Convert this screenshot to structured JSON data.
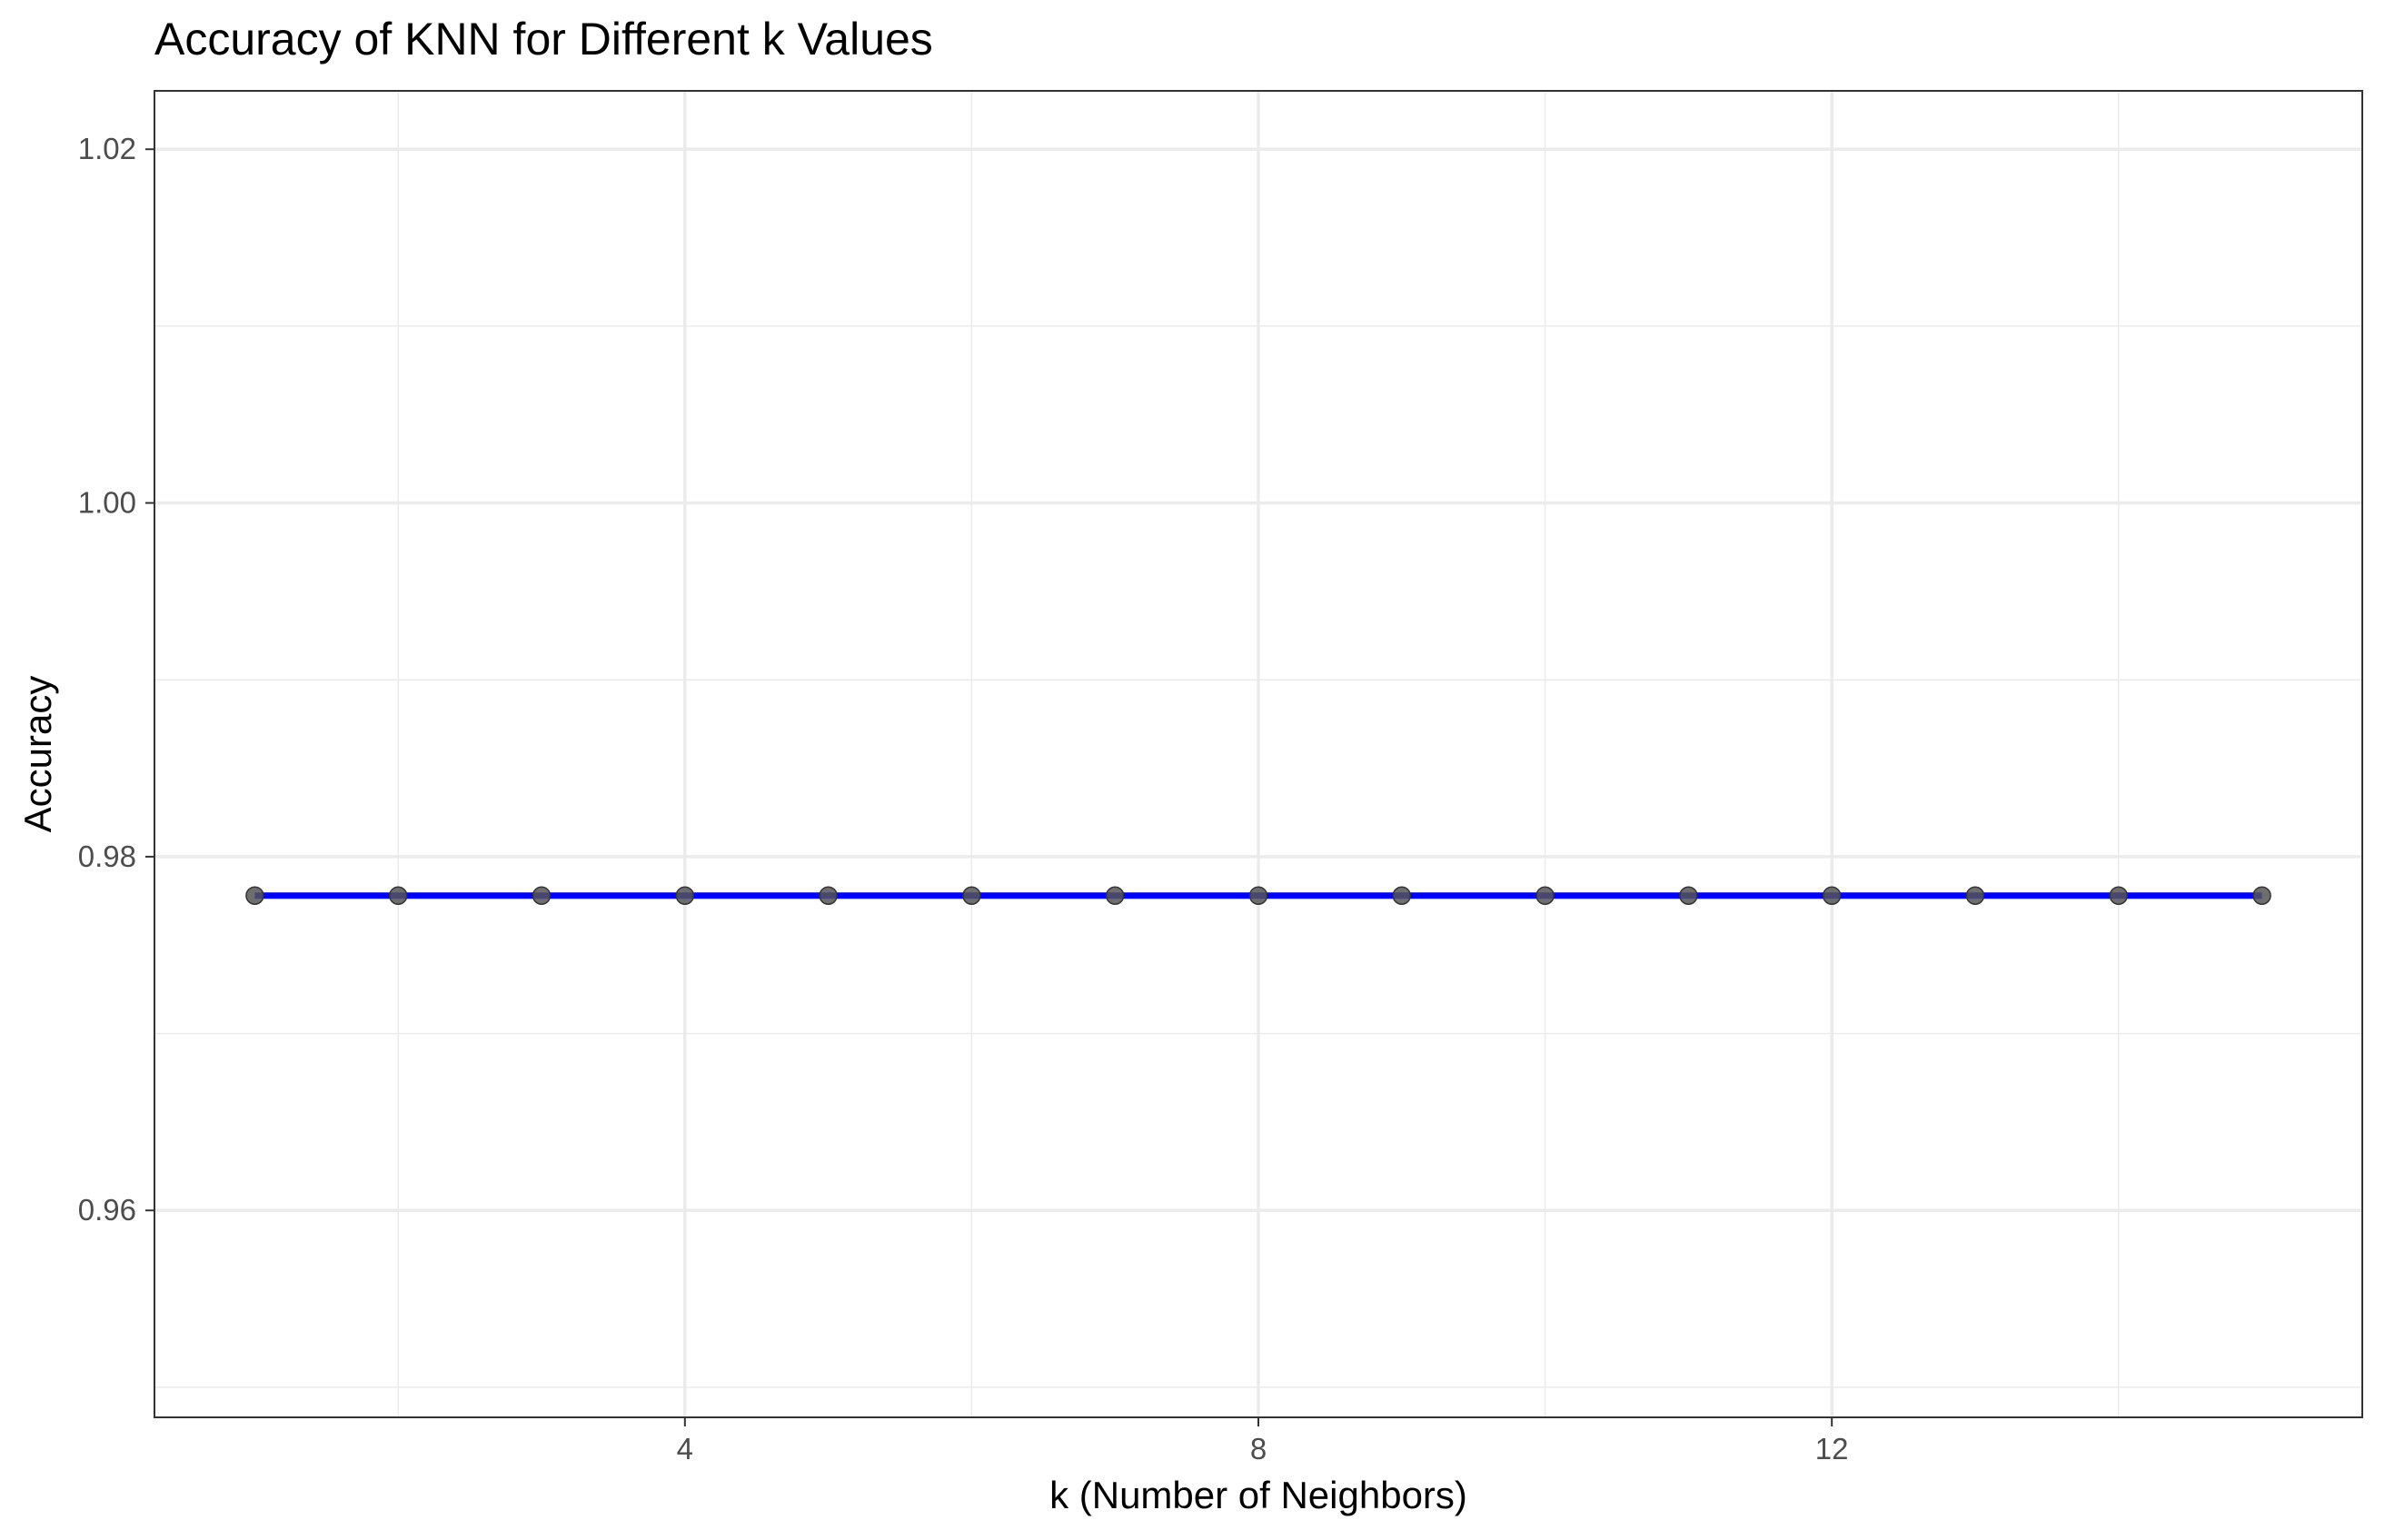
{
  "chart_data": {
    "type": "line",
    "title": "Accuracy of KNN for Different k Values",
    "xlabel": "k (Number of Neighbors)",
    "ylabel": "Accuracy",
    "xlim": [
      0.3,
      15.7
    ],
    "ylim": [
      0.9483,
      1.0233
    ],
    "x_ticks": [
      4,
      8,
      12
    ],
    "x_tick_labels": [
      "4",
      "8",
      "12"
    ],
    "x_minor_ticks": [
      2,
      6,
      10,
      14
    ],
    "y_ticks": [
      0.96,
      0.98,
      1.0,
      1.02
    ],
    "y_tick_labels": [
      "0.96",
      "0.98",
      "1.00",
      "1.02"
    ],
    "y_minor_ticks": [
      0.95,
      0.97,
      0.99,
      1.01
    ],
    "grid": true,
    "series": [
      {
        "name": "Accuracy",
        "line_color": "#0000ff",
        "point_color": "#555555",
        "x": [
          1,
          2,
          3,
          4,
          5,
          6,
          7,
          8,
          9,
          10,
          11,
          12,
          13,
          14,
          15
        ],
        "values": [
          0.9778,
          0.9778,
          0.9778,
          0.9778,
          0.9778,
          0.9778,
          0.9778,
          0.9778,
          0.9778,
          0.9778,
          0.9778,
          0.9778,
          0.9778,
          0.9778,
          0.9778
        ]
      }
    ]
  }
}
